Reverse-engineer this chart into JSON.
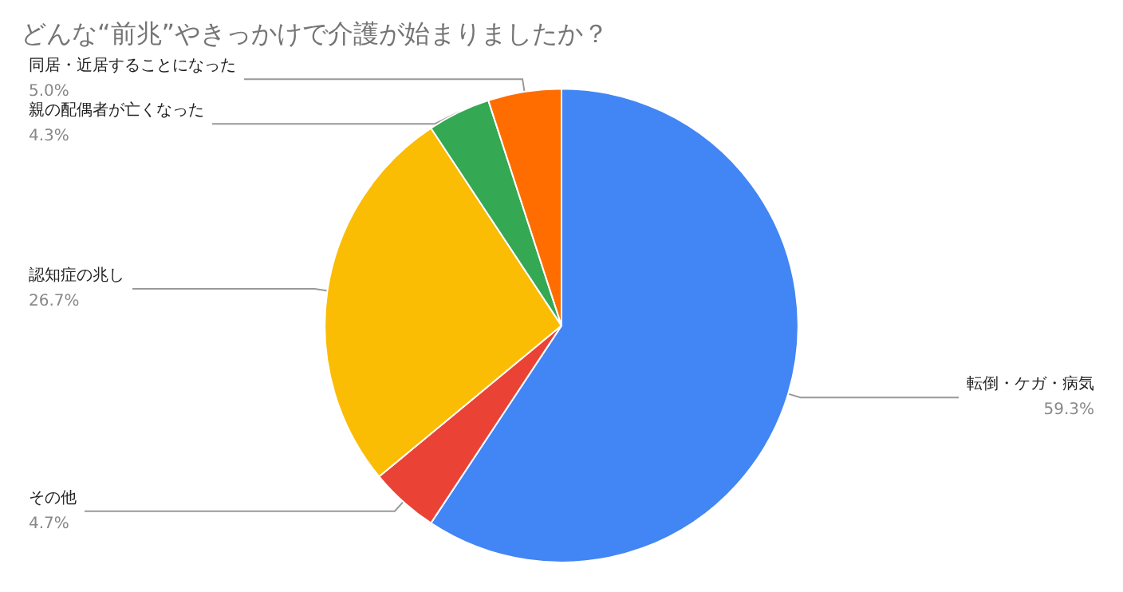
{
  "chart_data": {
    "type": "pie",
    "title": "どんな“前兆”やきっかけで介護が始まりましたか？",
    "categories": [
      "転倒・ケガ・病気",
      "その他",
      "認知症の兆し",
      "親の配偶者が亡くなった",
      "同居・近居することになった"
    ],
    "values": [
      59.3,
      4.7,
      26.7,
      4.3,
      5.0
    ],
    "value_labels": [
      "59.3%",
      "4.7%",
      "26.7%",
      "4.3%",
      "5.0%"
    ],
    "colors": [
      "#4285f4",
      "#ea4335",
      "#fbbc04",
      "#34a853",
      "#ff6d01"
    ],
    "legend": false
  }
}
